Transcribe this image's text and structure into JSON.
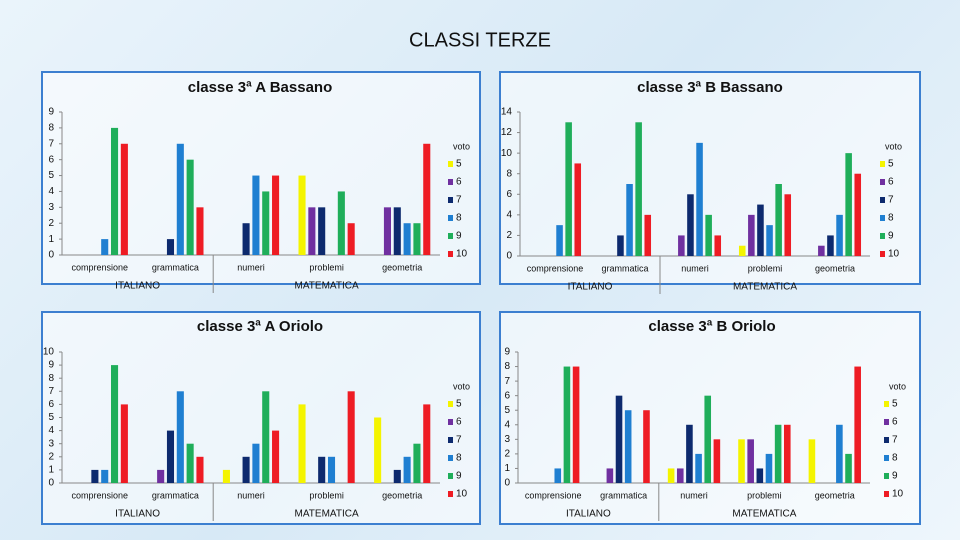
{
  "title": "CLASSI TERZE",
  "chart_data": [
    {
      "type": "bar",
      "title": "classe 3ª A Bassano",
      "legend_title": "voto",
      "categories": [
        "comprensione",
        "grammatica",
        "numeri",
        "problemi",
        "geometria"
      ],
      "groups": [
        {
          "name": "ITALIANO",
          "categories": [
            0,
            1
          ]
        },
        {
          "name": "MATEMATICA",
          "categories": [
            2,
            3,
            4
          ]
        }
      ],
      "ylim": [
        0,
        9
      ],
      "yticks": [
        0,
        1,
        2,
        3,
        4,
        5,
        6,
        7,
        8,
        9
      ],
      "series": [
        {
          "name": "5",
          "color": "#f4f400",
          "values": [
            0,
            0,
            0,
            5,
            0
          ]
        },
        {
          "name": "6",
          "color": "#7030a0",
          "values": [
            0,
            0,
            0,
            3,
            3
          ]
        },
        {
          "name": "7",
          "color": "#0d2a6e",
          "values": [
            0,
            1,
            2,
            3,
            3
          ]
        },
        {
          "name": "8",
          "color": "#1f7fd1",
          "values": [
            1,
            7,
            5,
            0,
            2
          ]
        },
        {
          "name": "9",
          "color": "#1fae5a",
          "values": [
            8,
            6,
            4,
            4,
            2
          ]
        },
        {
          "name": "10",
          "color": "#ee1c24",
          "values": [
            7,
            3,
            5,
            2,
            7
          ]
        }
      ]
    },
    {
      "type": "bar",
      "title": "classe 3ª B Bassano",
      "legend_title": "voto",
      "categories": [
        "comprensione",
        "grammatica",
        "numeri",
        "problemi",
        "geometria"
      ],
      "groups": [
        {
          "name": "ITALIANO",
          "categories": [
            0,
            1
          ]
        },
        {
          "name": "MATEMATICA",
          "categories": [
            2,
            3,
            4
          ]
        }
      ],
      "ylim": [
        0,
        14
      ],
      "yticks": [
        0,
        2,
        4,
        6,
        8,
        10,
        12,
        14
      ],
      "series": [
        {
          "name": "5",
          "color": "#f4f400",
          "values": [
            0,
            0,
            0,
            1,
            0
          ]
        },
        {
          "name": "6",
          "color": "#7030a0",
          "values": [
            0,
            0,
            2,
            4,
            1
          ]
        },
        {
          "name": "7",
          "color": "#0d2a6e",
          "values": [
            0,
            2,
            6,
            5,
            2
          ]
        },
        {
          "name": "8",
          "color": "#1f7fd1",
          "values": [
            3,
            7,
            11,
            3,
            4
          ]
        },
        {
          "name": "9",
          "color": "#1fae5a",
          "values": [
            13,
            13,
            4,
            7,
            10
          ]
        },
        {
          "name": "10",
          "color": "#ee1c24",
          "values": [
            9,
            4,
            2,
            6,
            8
          ]
        }
      ]
    },
    {
      "type": "bar",
      "title": "classe 3ª A Oriolo",
      "legend_title": "voto",
      "categories": [
        "comprensione",
        "grammatica",
        "numeri",
        "problemi",
        "geometria"
      ],
      "groups": [
        {
          "name": "ITALIANO",
          "categories": [
            0,
            1
          ]
        },
        {
          "name": "MATEMATICA",
          "categories": [
            2,
            3,
            4
          ]
        }
      ],
      "ylim": [
        0,
        10
      ],
      "yticks": [
        0,
        1,
        2,
        3,
        4,
        5,
        6,
        7,
        8,
        9,
        10
      ],
      "series": [
        {
          "name": "5",
          "color": "#f4f400",
          "values": [
            0,
            0,
            1,
            6,
            5
          ]
        },
        {
          "name": "6",
          "color": "#7030a0",
          "values": [
            0,
            1,
            0,
            0,
            0
          ]
        },
        {
          "name": "7",
          "color": "#0d2a6e",
          "values": [
            1,
            4,
            2,
            2,
            1
          ]
        },
        {
          "name": "8",
          "color": "#1f7fd1",
          "values": [
            1,
            7,
            3,
            2,
            2
          ]
        },
        {
          "name": "9",
          "color": "#1fae5a",
          "values": [
            9,
            3,
            7,
            0,
            3
          ]
        },
        {
          "name": "10",
          "color": "#ee1c24",
          "values": [
            6,
            2,
            4,
            7,
            6
          ]
        }
      ]
    },
    {
      "type": "bar",
      "title": "classe 3ª B Oriolo",
      "legend_title": "voto",
      "categories": [
        "comprensione",
        "grammatica",
        "numeri",
        "problemi",
        "geometria"
      ],
      "groups": [
        {
          "name": "ITALIANO",
          "categories": [
            0,
            1
          ]
        },
        {
          "name": "MATEMATICA",
          "categories": [
            2,
            3,
            4
          ]
        }
      ],
      "ylim": [
        0,
        9
      ],
      "yticks": [
        0,
        1,
        2,
        3,
        4,
        5,
        6,
        7,
        8,
        9
      ],
      "series": [
        {
          "name": "5",
          "color": "#f4f400",
          "values": [
            0,
            0,
            1,
            3,
            3
          ]
        },
        {
          "name": "6",
          "color": "#7030a0",
          "values": [
            0,
            1,
            1,
            3,
            0
          ]
        },
        {
          "name": "7",
          "color": "#0d2a6e",
          "values": [
            0,
            6,
            4,
            1,
            0
          ]
        },
        {
          "name": "8",
          "color": "#1f7fd1",
          "values": [
            1,
            5,
            2,
            2,
            4
          ]
        },
        {
          "name": "9",
          "color": "#1fae5a",
          "values": [
            8,
            0,
            6,
            4,
            2
          ]
        },
        {
          "name": "10",
          "color": "#ee1c24",
          "values": [
            8,
            5,
            3,
            4,
            8
          ]
        }
      ]
    }
  ]
}
